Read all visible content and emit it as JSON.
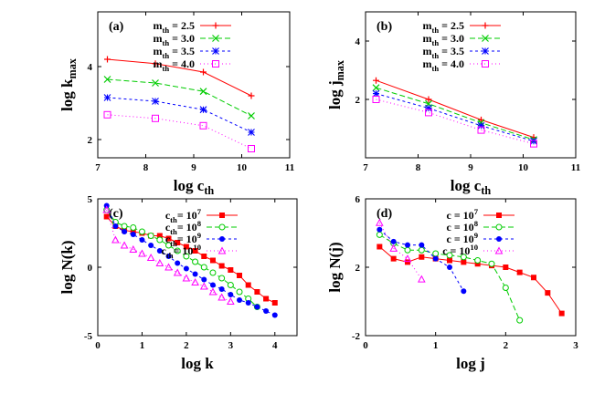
{
  "chart_data": [
    {
      "panel": "(a)",
      "type": "line",
      "xlabel": "log c",
      "xlabel_sub": "th",
      "ylabel": "log k",
      "ylabel_sub": "max",
      "xlim": [
        7,
        11
      ],
      "ylim": [
        1.5,
        5.5
      ],
      "xticks": [
        7,
        8,
        9,
        10,
        11
      ],
      "yticks": [
        2,
        4
      ],
      "legend": "top-right",
      "series": [
        {
          "label": "m",
          "label_sub": "th",
          "label_value": " = 2.5",
          "color": "#ff0000",
          "dash": "",
          "marker": "plus",
          "x": [
            7.2,
            8.2,
            9.2,
            10.2
          ],
          "y": [
            4.2,
            4.08,
            3.85,
            3.2
          ]
        },
        {
          "label": "m",
          "label_sub": "th",
          "label_value": " = 3.0",
          "color": "#00cc00",
          "dash": "6,3",
          "marker": "x",
          "x": [
            7.2,
            8.2,
            9.2,
            10.2
          ],
          "y": [
            3.65,
            3.55,
            3.32,
            2.65
          ]
        },
        {
          "label": "m",
          "label_sub": "th",
          "label_value": " = 3.5",
          "color": "#0000ff",
          "dash": "3,3",
          "marker": "star",
          "x": [
            7.2,
            8.2,
            9.2,
            10.2
          ],
          "y": [
            3.15,
            3.05,
            2.82,
            2.2
          ]
        },
        {
          "label": "m",
          "label_sub": "th",
          "label_value": " = 4.0",
          "color": "#ff00ff",
          "dash": "1,3",
          "marker": "square",
          "x": [
            7.2,
            8.2,
            9.2,
            10.2
          ],
          "y": [
            2.68,
            2.58,
            2.38,
            1.75
          ]
        }
      ]
    },
    {
      "panel": "(b)",
      "type": "line",
      "xlabel": "log c",
      "xlabel_sub": "th",
      "ylabel": "log j",
      "ylabel_sub": "max",
      "xlim": [
        7,
        11
      ],
      "ylim": [
        0,
        5
      ],
      "xticks": [
        7,
        8,
        9,
        10,
        11
      ],
      "yticks": [
        2,
        4
      ],
      "legend": "top-right",
      "series": [
        {
          "label": "m",
          "label_sub": "th",
          "label_value": " = 2.5",
          "color": "#ff0000",
          "dash": "",
          "marker": "plus",
          "x": [
            7.2,
            8.2,
            9.2,
            10.2
          ],
          "y": [
            2.65,
            2.0,
            1.3,
            0.7
          ]
        },
        {
          "label": "m",
          "label_sub": "th",
          "label_value": " = 3.0",
          "color": "#00cc00",
          "dash": "6,3",
          "marker": "x",
          "x": [
            7.2,
            8.2,
            9.2,
            10.2
          ],
          "y": [
            2.4,
            1.85,
            1.2,
            0.62
          ]
        },
        {
          "label": "m",
          "label_sub": "th",
          "label_value": " = 3.5",
          "color": "#0000ff",
          "dash": "3,3",
          "marker": "star",
          "x": [
            7.2,
            8.2,
            9.2,
            10.2
          ],
          "y": [
            2.2,
            1.7,
            1.1,
            0.57
          ]
        },
        {
          "label": "m",
          "label_sub": "th",
          "label_value": " = 4.0",
          "color": "#ff00ff",
          "dash": "1,3",
          "marker": "square",
          "x": [
            7.2,
            8.2,
            9.2,
            10.2
          ],
          "y": [
            2.0,
            1.55,
            0.95,
            0.48
          ]
        }
      ]
    },
    {
      "panel": "(c)",
      "type": "line",
      "xlabel": "log k",
      "xlabel_sub": "",
      "ylabel": "log N(k)",
      "ylabel_sub": "",
      "xlim": [
        0,
        4.5
      ],
      "ylim": [
        -5,
        5
      ],
      "xticks": [
        0,
        1,
        2,
        3,
        4
      ],
      "yticks": [
        -5,
        0,
        5
      ],
      "legend": "top-right",
      "series": [
        {
          "label": "c",
          "label_sub": "th",
          "label_value": "= 10",
          "label_sup": "7",
          "color": "#ff0000",
          "dash": "",
          "marker": "filled-square",
          "x": [
            0.2,
            0.4,
            0.6,
            0.8,
            1.0,
            1.2,
            1.4,
            1.6,
            1.8,
            2.0,
            2.2,
            2.4,
            2.6,
            2.8,
            3.0,
            3.2,
            3.4,
            3.6,
            3.8,
            4.0
          ],
          "y": [
            3.7,
            3.0,
            2.7,
            2.6,
            2.5,
            2.3,
            2.3,
            2.1,
            1.8,
            1.5,
            1.2,
            0.8,
            0.5,
            0.1,
            -0.2,
            -0.6,
            -1.3,
            -1.8,
            -2.3,
            -2.6
          ]
        },
        {
          "label": "c",
          "label_sub": "th",
          "label_value": "= 10",
          "label_sup": "8",
          "color": "#00cc00",
          "dash": "6,3",
          "marker": "open-circle",
          "x": [
            0.2,
            0.4,
            0.6,
            0.8,
            1.0,
            1.2,
            1.4,
            1.6,
            1.8,
            2.0,
            2.2,
            2.4,
            2.6,
            2.8,
            3.0,
            3.2,
            3.4,
            3.6
          ],
          "y": [
            4.2,
            3.3,
            3.0,
            2.9,
            2.6,
            2.3,
            2.0,
            1.6,
            1.2,
            0.8,
            0.4,
            0.0,
            -0.4,
            -0.8,
            -1.3,
            -1.8,
            -2.3,
            -2.9
          ]
        },
        {
          "label": "c",
          "label_sub": "th",
          "label_value": "= 10",
          "label_sup": "9",
          "color": "#0000ff",
          "dash": "3,3",
          "marker": "filled-circle",
          "x": [
            0.2,
            0.4,
            0.6,
            0.8,
            1.0,
            1.2,
            1.4,
            1.6,
            1.8,
            2.0,
            2.2,
            2.4,
            2.6,
            2.8,
            3.0,
            3.2,
            3.4,
            3.6,
            3.8,
            4.0
          ],
          "y": [
            4.5,
            3.0,
            2.6,
            2.4,
            2.0,
            1.6,
            1.2,
            0.8,
            0.3,
            -0.1,
            -0.5,
            -0.9,
            -1.3,
            -1.6,
            -2.0,
            -2.4,
            -2.6,
            -2.9,
            -3.2,
            -3.5
          ]
        },
        {
          "label": "c",
          "label_sub": "th",
          "label_value": "= 10",
          "label_sup": "10",
          "color": "#ff00ff",
          "dash": "1,3",
          "marker": "open-triangle",
          "x": [
            0.2,
            0.4,
            0.6,
            0.8,
            1.0,
            1.2,
            1.4,
            1.6,
            1.8,
            2.0,
            2.2,
            2.4,
            2.6,
            2.8,
            3.0
          ],
          "y": [
            4.2,
            2.0,
            1.6,
            1.3,
            1.0,
            0.7,
            0.3,
            0.0,
            -0.4,
            -0.8,
            -1.1,
            -1.4,
            -1.8,
            -2.2,
            -2.5
          ]
        }
      ]
    },
    {
      "panel": "(d)",
      "type": "line",
      "xlabel": "log j",
      "xlabel_sub": "",
      "ylabel": "log N(j)",
      "ylabel_sub": "",
      "xlim": [
        0,
        3
      ],
      "ylim": [
        -2,
        6
      ],
      "xticks": [
        0,
        1,
        2,
        3
      ],
      "yticks": [
        -2,
        2,
        6
      ],
      "legend": "top-right",
      "series": [
        {
          "label": "c",
          "label_sub": "",
          "label_value": " = 10",
          "label_sup": "7",
          "color": "#ff0000",
          "dash": "",
          "marker": "filled-square",
          "x": [
            0.2,
            0.4,
            0.6,
            0.8,
            1.0,
            1.2,
            1.4,
            1.6,
            1.8,
            2.0,
            2.2,
            2.4,
            2.6,
            2.8
          ],
          "y": [
            3.2,
            2.5,
            2.3,
            2.6,
            2.5,
            2.4,
            2.3,
            2.2,
            2.1,
            2.0,
            1.7,
            1.4,
            0.5,
            -0.7
          ]
        },
        {
          "label": "c",
          "label_sub": "",
          "label_value": " = 10",
          "label_sup": "8",
          "color": "#00cc00",
          "dash": "6,3",
          "marker": "open-circle",
          "x": [
            0.2,
            0.4,
            0.6,
            0.8,
            1.0,
            1.2,
            1.4,
            1.6,
            1.8,
            2.0,
            2.2
          ],
          "y": [
            3.9,
            3.4,
            3.0,
            3.0,
            2.8,
            2.7,
            2.6,
            2.4,
            2.2,
            0.8,
            -1.1
          ]
        },
        {
          "label": "c",
          "label_sub": "",
          "label_value": " = 10",
          "label_sup": "9",
          "color": "#0000ff",
          "dash": "3,3",
          "marker": "filled-circle",
          "x": [
            0.2,
            0.4,
            0.6,
            0.8,
            1.0,
            1.2,
            1.4
          ],
          "y": [
            4.2,
            3.5,
            3.3,
            3.3,
            2.5,
            2.0,
            0.6
          ]
        },
        {
          "label": "c",
          "label_sub": "",
          "label_value": " = 10",
          "label_sup": "10",
          "color": "#ff00ff",
          "dash": "1,3",
          "marker": "open-triangle",
          "x": [
            0.2,
            0.4,
            0.6,
            0.8
          ],
          "y": [
            4.6,
            3.1,
            2.5,
            1.3
          ]
        }
      ]
    }
  ]
}
